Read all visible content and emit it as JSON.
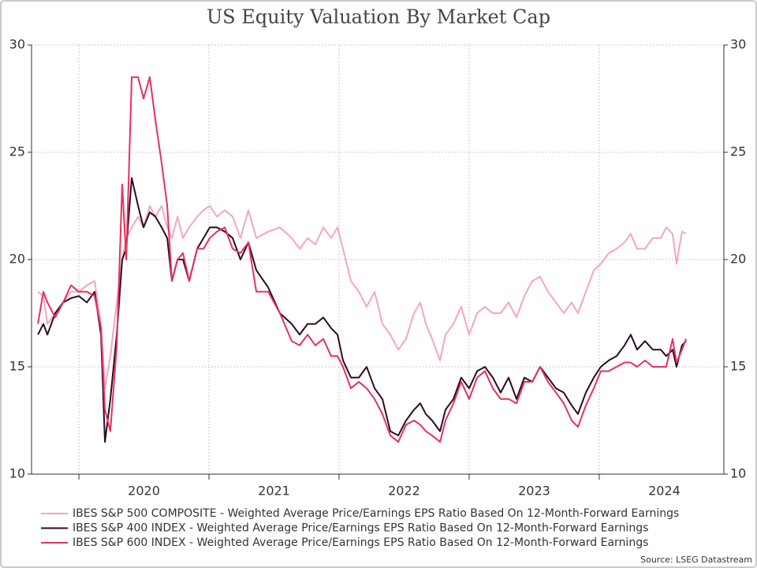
{
  "chart_data": {
    "type": "line",
    "title": "US Equity Valuation By Market Cap",
    "source": "Source: LSEG Datastream",
    "x": [
      2019.685,
      2019.727,
      2019.758,
      2019.818,
      2019.879,
      2019.939,
      2020.0,
      2020.061,
      2020.121,
      2020.17,
      2020.2,
      2020.242,
      2020.291,
      2020.333,
      2020.364,
      2020.406,
      2020.455,
      2020.497,
      2020.545,
      2020.588,
      2020.636,
      2020.679,
      2020.715,
      2020.758,
      2020.8,
      2020.848,
      2020.909,
      2020.958,
      2021.006,
      2021.061,
      2021.121,
      2021.182,
      2021.242,
      2021.303,
      2021.364,
      2021.455,
      2021.545,
      2021.636,
      2021.697,
      2021.758,
      2021.818,
      2021.879,
      2021.939,
      2021.988,
      2022.03,
      2022.091,
      2022.152,
      2022.212,
      2022.273,
      2022.333,
      2022.394,
      2022.455,
      2022.515,
      2022.576,
      2022.624,
      2022.667,
      2022.715,
      2022.776,
      2022.818,
      2022.879,
      2022.939,
      2023.0,
      2023.061,
      2023.121,
      2023.182,
      2023.242,
      2023.303,
      2023.364,
      2023.424,
      2023.485,
      2023.545,
      2023.606,
      2023.667,
      2023.727,
      2023.788,
      2023.836,
      2023.897,
      2023.958,
      2024.012,
      2024.073,
      2024.133,
      2024.194,
      2024.242,
      2024.291,
      2024.352,
      2024.412,
      2024.473,
      2024.515,
      2024.564,
      2024.594,
      2024.636,
      2024.667
    ],
    "series": [
      {
        "name": "IBES S&P 500 COMPOSITE - Weighted Average Price/Earnings EPS Ratio Based On 12-Month-Forward Earnings",
        "color": "#f4a7b9",
        "values": [
          18.5,
          18.3,
          17.0,
          17.5,
          18.0,
          18.5,
          18.5,
          18.8,
          19.0,
          17.0,
          14.0,
          15.5,
          18.0,
          20.0,
          21.0,
          21.5,
          22.0,
          21.5,
          22.5,
          22.0,
          22.5,
          21.5,
          21.0,
          22.0,
          21.0,
          21.5,
          22.0,
          22.3,
          22.5,
          22.0,
          22.3,
          22.0,
          21.0,
          22.3,
          21.0,
          21.3,
          21.5,
          21.0,
          20.5,
          21.0,
          20.7,
          21.5,
          21.0,
          21.5,
          20.5,
          19.0,
          18.5,
          17.8,
          18.5,
          17.0,
          16.5,
          15.8,
          16.3,
          17.5,
          18.0,
          17.0,
          16.3,
          15.3,
          16.5,
          17.0,
          17.8,
          16.5,
          17.5,
          17.8,
          17.5,
          17.5,
          18.0,
          17.3,
          18.3,
          19.0,
          19.2,
          18.5,
          18.0,
          17.5,
          18.0,
          17.5,
          18.5,
          19.5,
          19.8,
          20.3,
          20.5,
          20.8,
          21.2,
          20.5,
          20.5,
          21.0,
          21.0,
          21.5,
          21.2,
          19.8,
          21.3,
          21.2
        ]
      },
      {
        "name": "IBES S&P 400 INDEX - Weighted Average Price/Earnings EPS Ratio Based On 12-Month-Forward Earnings",
        "color": "#2d0a26",
        "values": [
          16.5,
          17.0,
          16.5,
          17.5,
          18.0,
          18.2,
          18.3,
          18.0,
          18.5,
          16.5,
          11.5,
          13.5,
          16.5,
          20.0,
          20.5,
          23.8,
          22.5,
          21.5,
          22.2,
          22.0,
          21.5,
          21.0,
          19.0,
          20.0,
          20.0,
          19.0,
          20.5,
          21.0,
          21.5,
          21.5,
          21.3,
          21.0,
          20.0,
          20.8,
          19.5,
          18.7,
          17.5,
          17.0,
          16.5,
          17.0,
          17.0,
          17.3,
          16.8,
          16.5,
          15.3,
          14.5,
          14.5,
          15.0,
          14.0,
          13.5,
          12.0,
          11.8,
          12.5,
          13.0,
          13.3,
          12.8,
          12.5,
          12.0,
          13.0,
          13.5,
          14.5,
          14.0,
          14.8,
          15.0,
          14.5,
          13.8,
          14.5,
          13.5,
          14.5,
          14.3,
          15.0,
          14.5,
          14.0,
          13.8,
          13.2,
          12.8,
          13.8,
          14.5,
          15.0,
          15.3,
          15.5,
          16.0,
          16.5,
          15.8,
          16.2,
          15.8,
          15.8,
          15.5,
          15.8,
          15.0,
          16.0,
          16.2
        ]
      },
      {
        "name": "IBES S&P 600 INDEX - Weighted Average Price/Earnings EPS Ratio Based On 12-Month-Forward Earnings",
        "color": "#e8305e",
        "values": [
          17.0,
          18.5,
          18.0,
          17.3,
          18.0,
          18.8,
          18.5,
          18.5,
          18.3,
          16.8,
          13.0,
          12.0,
          16.0,
          23.5,
          20.0,
          28.5,
          28.5,
          27.5,
          28.5,
          26.5,
          24.5,
          22.5,
          19.0,
          20.0,
          20.3,
          19.0,
          20.5,
          20.5,
          21.0,
          21.3,
          21.5,
          20.5,
          20.3,
          20.8,
          18.5,
          18.5,
          17.5,
          16.2,
          16.0,
          16.5,
          16.0,
          16.3,
          15.5,
          15.5,
          15.0,
          14.0,
          14.3,
          14.0,
          13.5,
          12.8,
          11.8,
          11.5,
          12.3,
          12.5,
          12.3,
          12.0,
          11.8,
          11.5,
          12.5,
          13.3,
          14.3,
          13.5,
          14.5,
          14.8,
          14.0,
          13.5,
          13.5,
          13.3,
          14.3,
          14.3,
          15.0,
          14.3,
          13.8,
          13.3,
          12.5,
          12.2,
          13.2,
          14.0,
          14.8,
          14.8,
          15.0,
          15.2,
          15.2,
          15.0,
          15.3,
          15.0,
          15.0,
          15.0,
          16.3,
          15.2,
          15.8,
          16.3
        ]
      }
    ],
    "xlim": [
      2019.636,
      2024.958
    ],
    "xticks": [
      {
        "value": 2020.5,
        "label": "2020"
      },
      {
        "value": 2021.5,
        "label": "2021"
      },
      {
        "value": 2022.5,
        "label": "2022"
      },
      {
        "value": 2023.5,
        "label": "2023"
      },
      {
        "value": 2024.5,
        "label": "2024"
      }
    ],
    "xgrid": [
      2020,
      2021,
      2022,
      2023,
      2024
    ],
    "ylim": [
      10,
      30
    ],
    "yticks": [
      10,
      15,
      20,
      25,
      30
    ],
    "grid": true,
    "legend": "bottom"
  }
}
